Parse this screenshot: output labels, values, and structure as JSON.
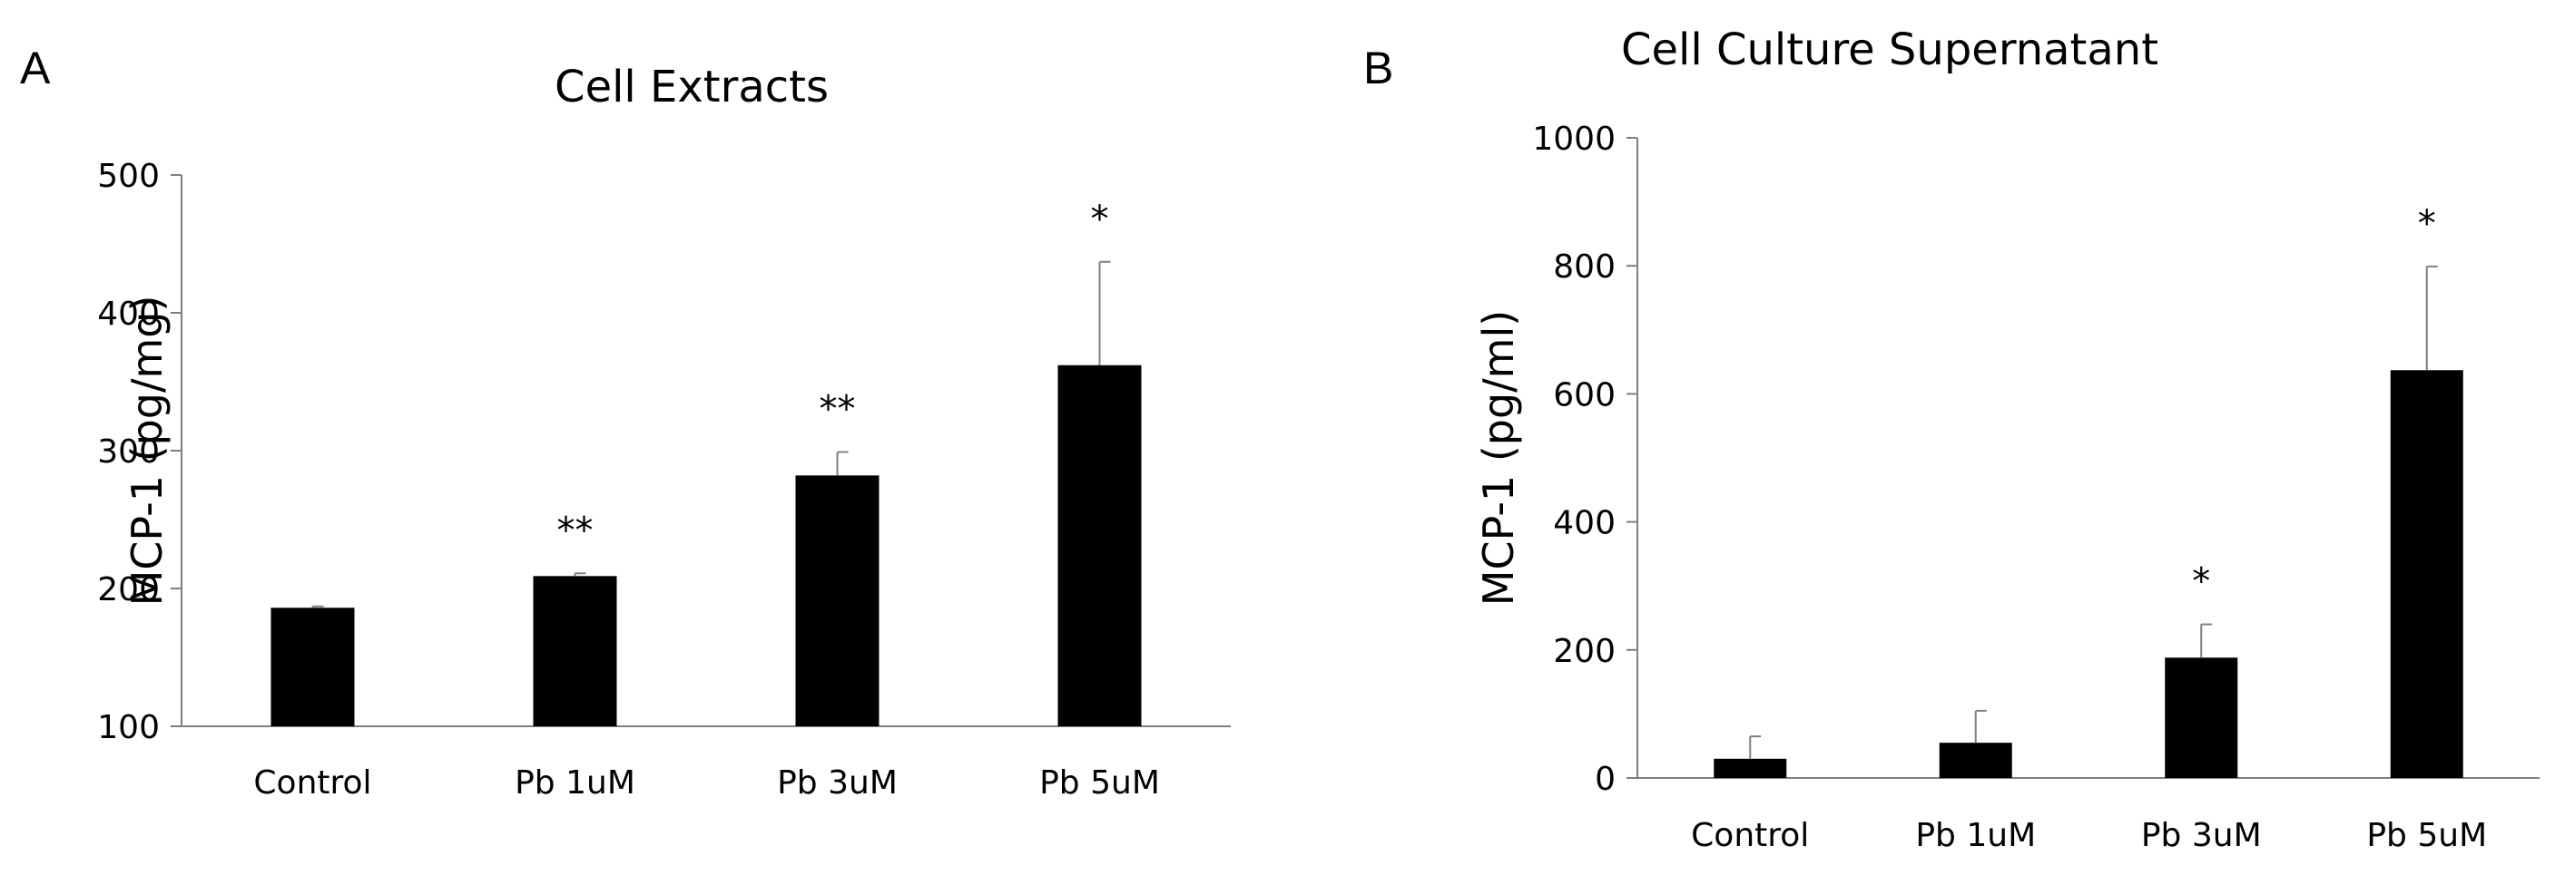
{
  "chart_data": [
    {
      "panel_label": "A",
      "type": "bar",
      "title": "Cell Extracts",
      "xlabel": "",
      "ylabel": "MCP-1 (pg/mg)",
      "categories": [
        "Control",
        "Pb 1uM",
        "Pb 3uM",
        "Pb 5uM"
      ],
      "values": [
        186,
        209,
        282,
        362
      ],
      "errors": [
        1,
        2,
        17,
        75
      ],
      "significance": [
        "",
        "**",
        "**",
        "*"
      ],
      "ylim": [
        100,
        500
      ],
      "yticks": [
        "100",
        "200",
        "300",
        "400",
        "500"
      ],
      "grid": false,
      "bar_color": "#000000"
    },
    {
      "panel_label": "B",
      "type": "bar",
      "title": "Cell Culture Supernatant",
      "xlabel": "",
      "ylabel": "MCP-1 (pg/ml)",
      "categories": [
        "Control",
        "Pb 1uM",
        "Pb 3uM",
        "Pb 5uM"
      ],
      "values": [
        30,
        55,
        188,
        637
      ],
      "errors": [
        35,
        50,
        52,
        162
      ],
      "significance": [
        "",
        "",
        "*",
        "*"
      ],
      "ylim": [
        0,
        1000
      ],
      "yticks": [
        "0",
        "200",
        "400",
        "600",
        "800",
        "1000"
      ],
      "grid": false,
      "bar_color": "#000000"
    }
  ]
}
